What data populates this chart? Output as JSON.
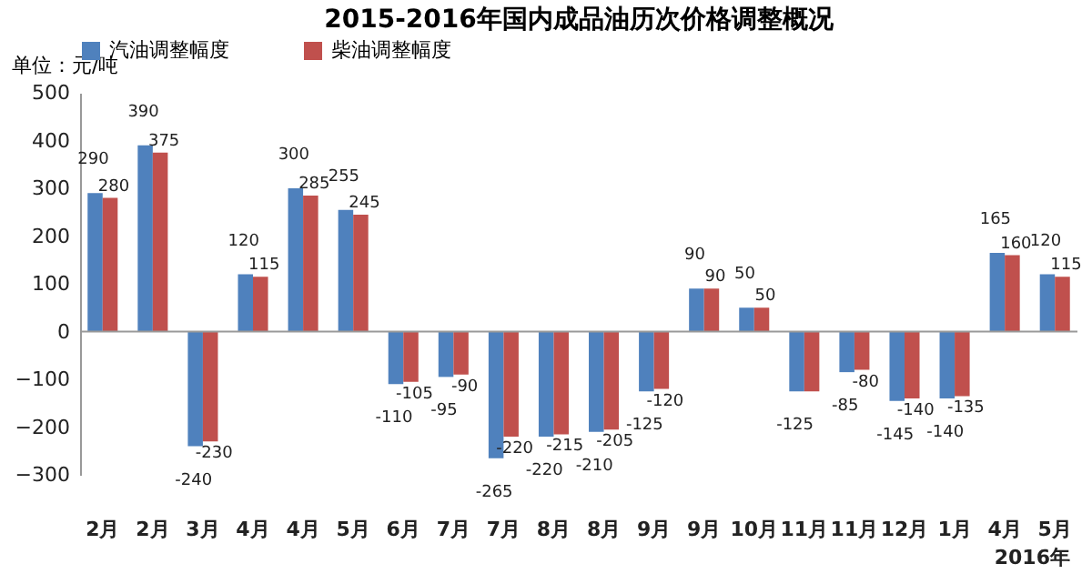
{
  "chart_data": {
    "type": "bar",
    "title": "2015-2016年国内成品油历次价格调整概况",
    "ylabel": "单位：元/吨",
    "categories": [
      "2月",
      "2月",
      "3月",
      "4月",
      "4月",
      "5月",
      "6月",
      "7月",
      "7月",
      "8月",
      "8月",
      "9月",
      "9月",
      "10月",
      "11月",
      "11月",
      "12月",
      "1月",
      "4月",
      "5月"
    ],
    "series": [
      {
        "name": "汽油调整幅度",
        "color": "#4f81bd",
        "values": [
          290,
          390,
          -240,
          120,
          300,
          255,
          -110,
          -95,
          -265,
          -220,
          -210,
          -125,
          90,
          50,
          -125,
          -85,
          -145,
          -140,
          165,
          120
        ]
      },
      {
        "name": "柴油调整幅度",
        "color": "#c0504d",
        "values": [
          280,
          375,
          -230,
          115,
          285,
          245,
          -105,
          -90,
          -220,
          -215,
          -205,
          -120,
          90,
          50,
          -125,
          -80,
          -140,
          -135,
          160,
          115
        ],
        "value_labels": [
          "280",
          "375",
          "-230",
          "115",
          "285",
          "245",
          "-105",
          "-90",
          "-220",
          "-215",
          "-205",
          "-120",
          "90",
          "50",
          null,
          "-80",
          "-140",
          "-135",
          "160",
          "115"
        ]
      }
    ],
    "data_labels": true,
    "annotations": [
      "2016年"
    ],
    "ylim": [
      -300,
      500
    ],
    "yticks": [
      -300,
      -200,
      -100,
      0,
      100,
      200,
      300,
      400,
      500
    ],
    "legend": "top"
  }
}
